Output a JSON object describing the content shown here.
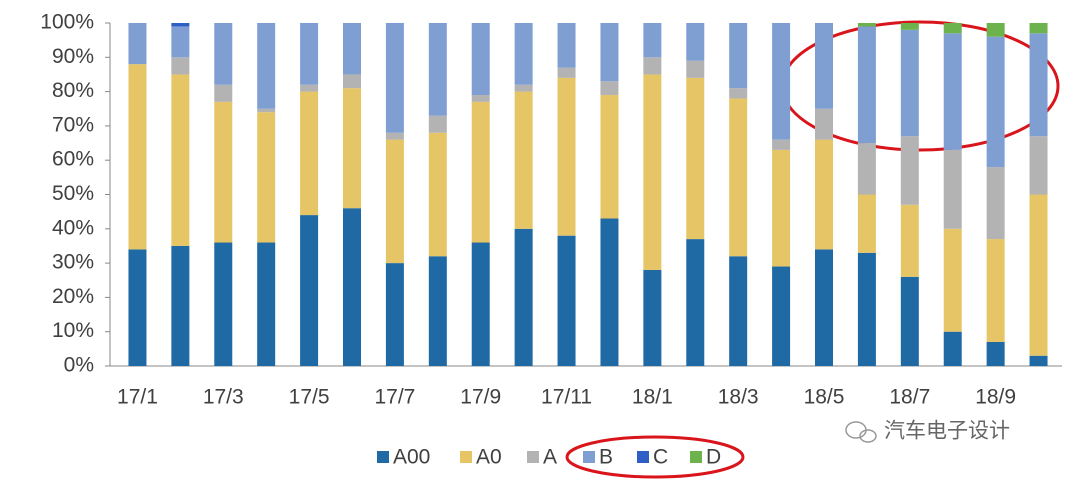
{
  "chart_data": {
    "type": "stacked_bar",
    "categories": [
      "17/1",
      null,
      "17/3",
      null,
      "17/5",
      null,
      "17/7",
      null,
      "17/9",
      null,
      "17/11",
      null,
      "18/1",
      null,
      "18/3",
      null,
      "18/5",
      null,
      "18/7",
      null,
      "18/9",
      null
    ],
    "series": [
      {
        "name": "A00",
        "color": "#1f6aa5",
        "values": [
          34,
          35,
          36,
          36,
          44,
          46,
          30,
          32,
          36,
          40,
          38,
          43,
          28,
          37,
          32,
          29,
          34,
          33,
          26,
          10,
          7,
          3
        ]
      },
      {
        "name": "A0",
        "color": "#e6c566",
        "values": [
          54,
          50,
          41,
          38,
          36,
          35,
          36,
          36,
          41,
          40,
          46,
          36,
          57,
          47,
          46,
          34,
          32,
          17,
          21,
          30,
          30,
          47
        ]
      },
      {
        "name": "A",
        "color": "#b3b3b3",
        "values": [
          0,
          5,
          5,
          1,
          2,
          4,
          2,
          5,
          2,
          2,
          3,
          4,
          5,
          5,
          3,
          3,
          9,
          15,
          20,
          23,
          21,
          17
        ]
      },
      {
        "name": "B",
        "color": "#7f9fd3",
        "values": [
          12,
          9,
          18,
          25,
          18,
          15,
          32,
          27,
          21,
          18,
          13,
          17,
          10,
          11,
          19,
          34,
          25,
          34,
          31,
          34,
          38,
          30
        ]
      },
      {
        "name": "C",
        "color": "#2f5fc4",
        "values": [
          0,
          1,
          0,
          0,
          0,
          0,
          0,
          0,
          0,
          0,
          0,
          0,
          0,
          0,
          0,
          0,
          0,
          0,
          0,
          0,
          0,
          0
        ]
      },
      {
        "name": "D",
        "color": "#6db34d",
        "values": [
          0,
          0,
          0,
          0,
          0,
          0,
          0,
          0,
          0,
          0,
          0,
          0,
          0,
          0,
          0,
          0,
          0,
          1,
          2,
          3,
          4,
          3
        ]
      }
    ],
    "ylim": [
      0,
      100
    ],
    "yticks": [
      {
        "value": 0,
        "label": "0%"
      },
      {
        "value": 10,
        "label": "10%"
      },
      {
        "value": 20,
        "label": "20%"
      },
      {
        "value": 30,
        "label": "30%"
      },
      {
        "value": 40,
        "label": "40%"
      },
      {
        "value": 50,
        "label": "50%"
      },
      {
        "value": 60,
        "label": "60%"
      },
      {
        "value": 70,
        "label": "70%"
      },
      {
        "value": 80,
        "label": "80%"
      },
      {
        "value": 90,
        "label": "90%"
      },
      {
        "value": 100,
        "label": "100%"
      }
    ],
    "watermark": "汽车电子设计"
  }
}
